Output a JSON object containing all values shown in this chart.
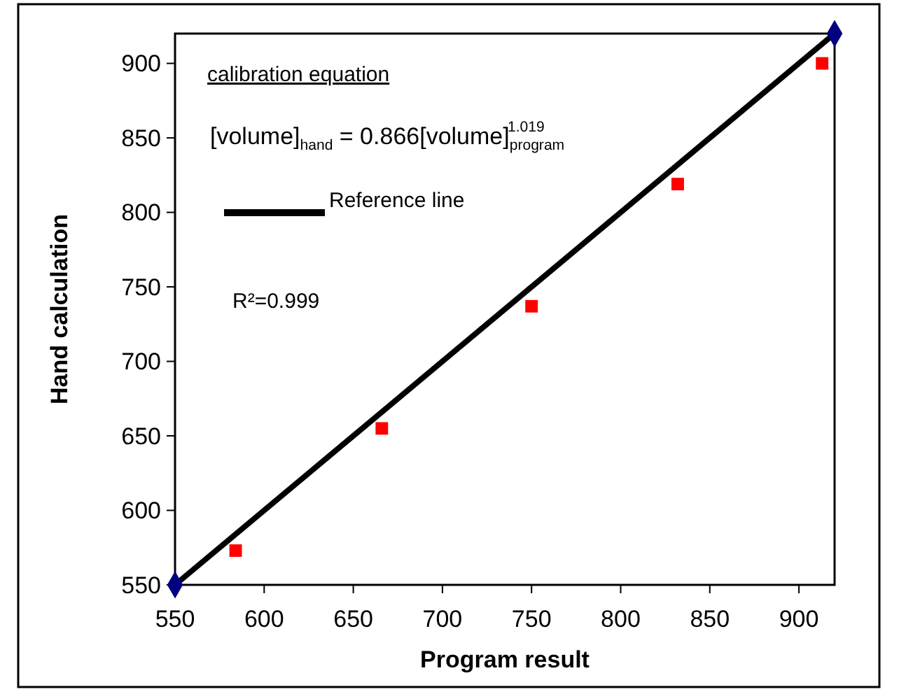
{
  "chart_data": {
    "type": "scatter",
    "xlabel": "Program result",
    "ylabel": "Hand calculation",
    "xlim": [
      550,
      920
    ],
    "ylim": [
      550,
      920
    ],
    "xticks": [
      550,
      600,
      650,
      700,
      750,
      800,
      850,
      900
    ],
    "yticks": [
      550,
      600,
      650,
      700,
      750,
      800,
      850,
      900
    ],
    "grid": false,
    "legend": "top left",
    "marker": "square",
    "annotations": [
      "calibration equation",
      "[volume]$_{hand}$ = 0.866[volume]$_{program}$$^{1.019}$",
      "R²=0.999"
    ],
    "series": [
      {
        "color": "#ff0000",
        "x": [
          584,
          666,
          750,
          832,
          913
        ],
        "values": [
          573,
          655,
          737,
          819,
          900
        ]
      },
      {
        "type": "line",
        "name": "Reference line",
        "color": "#000000",
        "marker": "none",
        "x": [
          550,
          920
        ],
        "values": [
          550,
          920
        ]
      },
      {
        "type": "scatter",
        "color": "#000080",
        "marker": "diamond",
        "x": [
          550,
          920
        ],
        "values": [
          550,
          920
        ]
      }
    ]
  }
}
